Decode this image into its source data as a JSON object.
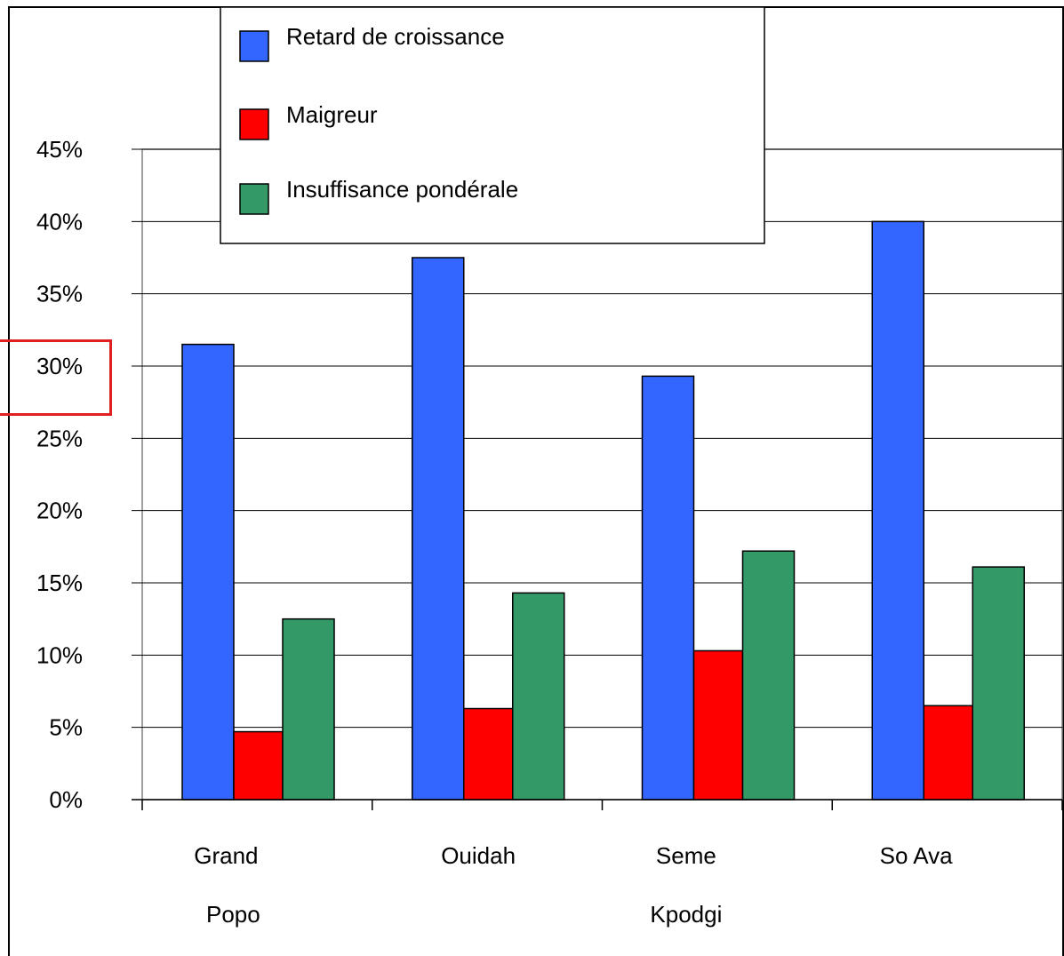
{
  "chart_data": {
    "type": "bar",
    "title": "",
    "xlabel": "",
    "ylabel": "",
    "ylim": [
      0,
      0.45
    ],
    "grid": true,
    "legend_position": "top-center",
    "y_ticks": [
      {
        "value": 0.0,
        "label": "0%"
      },
      {
        "value": 0.05,
        "label": "5%"
      },
      {
        "value": 0.1,
        "label": "10%"
      },
      {
        "value": 0.15,
        "label": "15%"
      },
      {
        "value": 0.2,
        "label": "20%"
      },
      {
        "value": 0.25,
        "label": "25%"
      },
      {
        "value": 0.3,
        "label": "30%"
      },
      {
        "value": 0.35,
        "label": "35%"
      },
      {
        "value": 0.4,
        "label": "40%"
      },
      {
        "value": 0.45,
        "label": "45%"
      }
    ],
    "categories": [
      {
        "line1": "Grand",
        "line2": "Popo"
      },
      {
        "line1": "Ouidah",
        "line2": ""
      },
      {
        "line1": "Seme",
        "line2": "Kpodgi"
      },
      {
        "line1": "So Ava",
        "line2": ""
      }
    ],
    "series": [
      {
        "name": "Retard de croissance",
        "color": "#3366ff",
        "values": [
          0.315,
          0.375,
          0.293,
          0.4
        ]
      },
      {
        "name": "Maigreur",
        "color": "#ff0000",
        "values": [
          0.047,
          0.063,
          0.103,
          0.065
        ]
      },
      {
        "name": "Insuffisance pondérale",
        "color": "#339966",
        "values": [
          0.125,
          0.143,
          0.172,
          0.161
        ]
      }
    ],
    "annotations": [
      {
        "type": "highlight-box",
        "target": "30%",
        "color": "#e02020"
      }
    ]
  }
}
